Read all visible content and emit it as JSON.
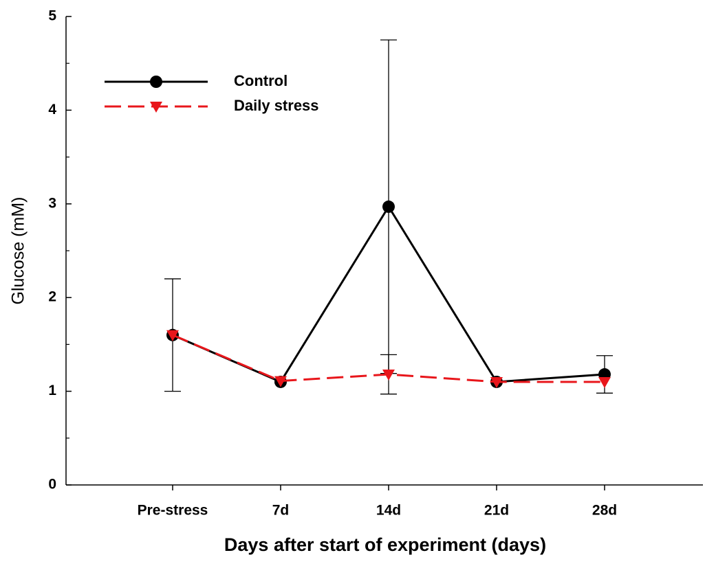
{
  "chart_data": {
    "type": "line",
    "xlabel": "Days after start of experiment (days)",
    "ylabel": "Glucose (mM)",
    "categories": [
      "Pre-stress",
      "7d",
      "14d",
      "21d",
      "28d"
    ],
    "series": [
      {
        "name": "Control",
        "color": "#000000",
        "marker": "circle",
        "dash": false,
        "values": [
          1.6,
          1.1,
          2.97,
          1.1,
          1.18
        ],
        "errors": [
          0.6,
          null,
          1.78,
          null,
          0.2
        ]
      },
      {
        "name": "Daily stress",
        "color": "#e8161b",
        "marker": "triangle-down",
        "dash": true,
        "values": [
          1.6,
          1.11,
          1.18,
          1.1,
          1.1
        ],
        "errors": [
          null,
          null,
          0.21,
          null,
          null
        ]
      }
    ],
    "ylim": [
      0,
      5
    ],
    "yticks": [
      0,
      1,
      2,
      3,
      4,
      5
    ],
    "yminorticks": [
      0.5,
      1.5,
      2.5,
      3.5,
      4.5
    ],
    "legend": "upper left"
  }
}
